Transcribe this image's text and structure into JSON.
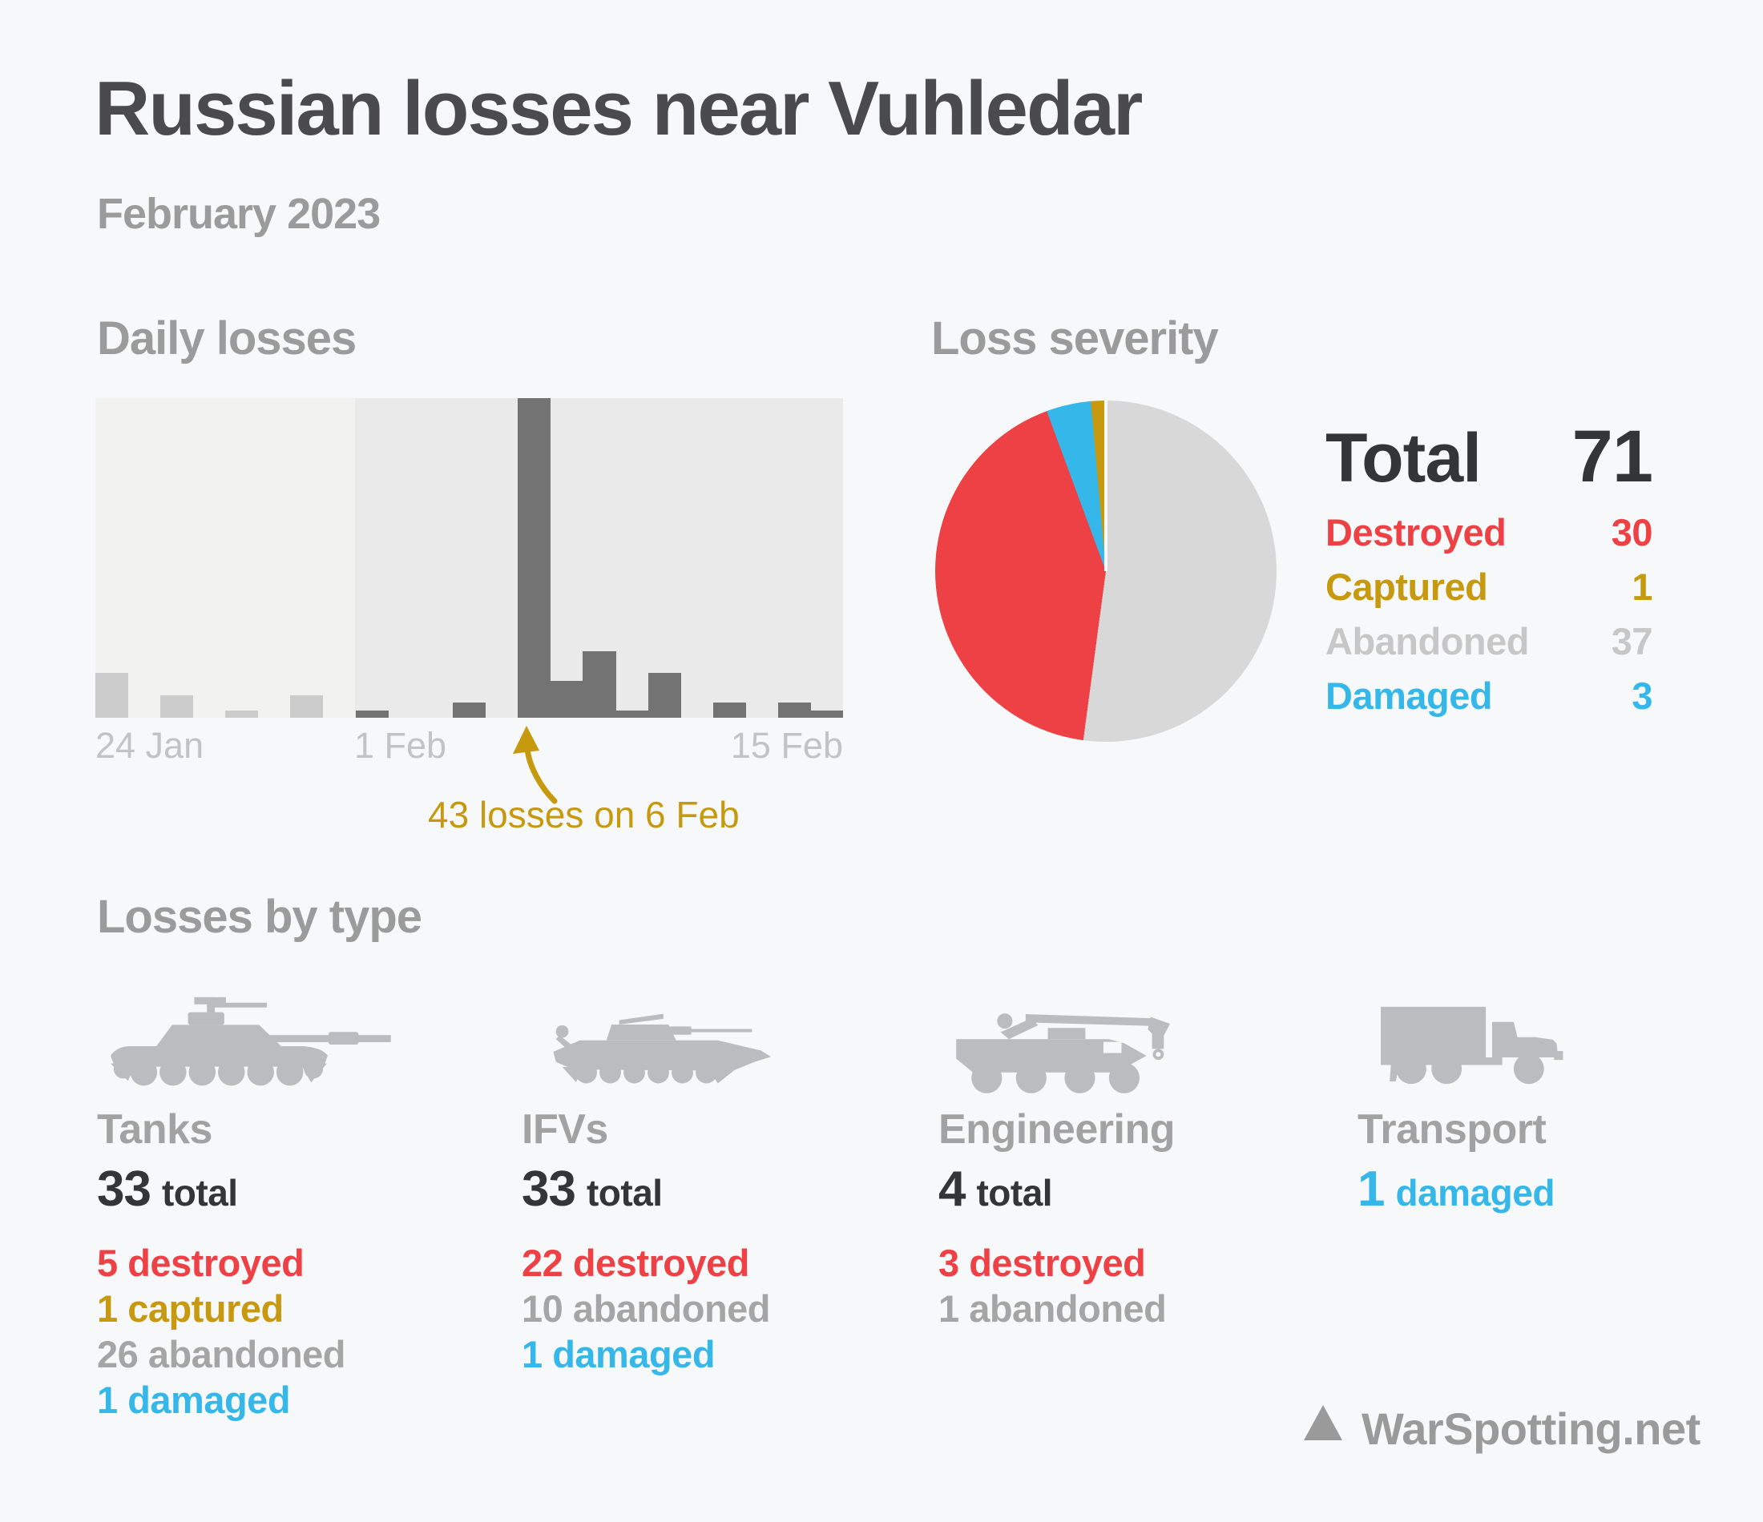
{
  "header": {
    "title": "Russian losses near Vuhledar",
    "subtitle": "February 2023"
  },
  "palette": {
    "background": "#f7f8f9",
    "title_text": "#4b4b4d",
    "muted_heading": "#9b9b9b",
    "axis_label": "#c3c3c6",
    "bar_january": "#cbcbcb",
    "bar_february": "#737373",
    "plot_bg_january": "#f2f2f1",
    "plot_bg_february": "#eaeaea",
    "destroyed": "#ee4145",
    "captured": "#c6990f",
    "abandoned_legend": "#c7c7c7",
    "abandoned": "#a5a5a5",
    "damaged": "#35b7ea",
    "dark": "#333537",
    "icon_gray": "#babcbf",
    "annotation": "#c6990f",
    "footer_gray": "#9a9a9a"
  },
  "daily": {
    "heading": "Daily losses",
    "x_ticks": [
      "24 Jan",
      "1 Feb",
      "15 Feb"
    ],
    "annotation": {
      "text": "43 losses on 6 Feb"
    }
  },
  "severity": {
    "heading": "Loss severity",
    "total_label": "Total",
    "total_value": "71",
    "rows": [
      {
        "label": "Destroyed",
        "value": "30",
        "color": "destroyed"
      },
      {
        "label": "Captured",
        "value": "1",
        "color": "captured"
      },
      {
        "label": "Abandoned",
        "value": "37",
        "color": "abandoned_legend"
      },
      {
        "label": "Damaged",
        "value": "3",
        "color": "damaged"
      }
    ]
  },
  "types": {
    "heading": "Losses by type",
    "columns": [
      {
        "name": "Tanks",
        "icon": "tank-icon",
        "headline": {
          "value": "33",
          "label": "total",
          "color": "dark"
        },
        "stats": [
          {
            "value": "5",
            "label": "destroyed",
            "color": "destroyed"
          },
          {
            "value": "1",
            "label": "captured",
            "color": "captured"
          },
          {
            "value": "26",
            "label": "abandoned",
            "color": "abandoned"
          },
          {
            "value": "1",
            "label": "damaged",
            "color": "damaged"
          }
        ]
      },
      {
        "name": "IFVs",
        "icon": "ifv-icon",
        "headline": {
          "value": "33",
          "label": "total",
          "color": "dark"
        },
        "stats": [
          {
            "value": "22",
            "label": "destroyed",
            "color": "destroyed"
          },
          {
            "value": "10",
            "label": "abandoned",
            "color": "abandoned"
          },
          {
            "value": "1",
            "label": "damaged",
            "color": "damaged"
          }
        ]
      },
      {
        "name": "Engineering",
        "icon": "engineering-vehicle-icon",
        "headline": {
          "value": "4",
          "label": "total",
          "color": "dark"
        },
        "stats": [
          {
            "value": "3",
            "label": "destroyed",
            "color": "destroyed"
          },
          {
            "value": "1",
            "label": "abandoned",
            "color": "abandoned"
          }
        ]
      },
      {
        "name": "Transport",
        "icon": "truck-icon",
        "headline": {
          "value": "1",
          "label": "damaged",
          "color": "damaged"
        },
        "stats": []
      }
    ]
  },
  "footer": {
    "brand": "WarSpotting.net"
  },
  "chart_data": [
    {
      "type": "bar",
      "title": "Daily losses",
      "x": [
        "24 Jan",
        "25 Jan",
        "26 Jan",
        "27 Jan",
        "28 Jan",
        "29 Jan",
        "30 Jan",
        "31 Jan",
        "1 Feb",
        "2 Feb",
        "3 Feb",
        "4 Feb",
        "5 Feb",
        "6 Feb",
        "7 Feb",
        "8 Feb",
        "9 Feb",
        "10 Feb",
        "11 Feb",
        "12 Feb",
        "13 Feb",
        "14 Feb",
        "15 Feb"
      ],
      "values": [
        6,
        0,
        3,
        0,
        1,
        0,
        3,
        0,
        1,
        0,
        0,
        2,
        0,
        43,
        5,
        9,
        1,
        6,
        0,
        2,
        0,
        2,
        1
      ],
      "january_days": 8,
      "ylim": [
        0,
        43
      ],
      "grid": false,
      "x_tick_labels_shown": [
        "24 Jan",
        "1 Feb",
        "15 Feb"
      ],
      "annotation": "43 losses on 6 Feb",
      "note": "January bars shown light gray for context; February bars dark gray; values estimated from bar heights"
    },
    {
      "type": "pie",
      "title": "Loss severity",
      "total": 71,
      "start_angle": "12 o'clock, clockwise",
      "labels": [
        "Abandoned",
        "Destroyed",
        "Damaged",
        "Captured"
      ],
      "values": [
        37,
        30,
        3,
        1
      ],
      "colors": [
        "#d8d8d8",
        "#ee4145",
        "#35b7ea",
        "#c6990f"
      ],
      "legend_position": "right"
    }
  ]
}
